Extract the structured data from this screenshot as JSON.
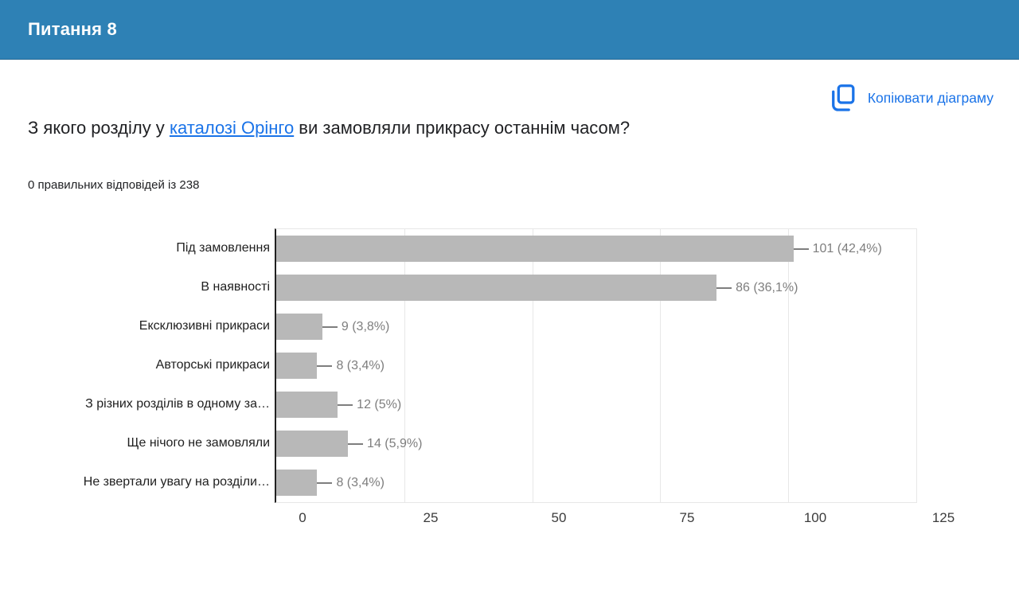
{
  "theme": {
    "header_bg": "#2e81b5",
    "accent_blue": "#1a73e8",
    "bar_color": "#b8b8b8",
    "value_label_color": "#7e7e7e",
    "grid_color": "#e7e7e7",
    "text_dark": "#202124"
  },
  "header": {
    "title": "Питання 8"
  },
  "toolbar": {
    "copy_chart_label": "Копіювати діаграму"
  },
  "question": {
    "text_before_link": "З якого розділу у ",
    "link_text": "каталозі Орінго",
    "text_after_link": " ви замовляли прикрасу останнім часом?"
  },
  "summary": {
    "text": "0 правильних відповідей із 238"
  },
  "chart_data": {
    "type": "bar",
    "orientation": "horizontal",
    "title": "",
    "xlabel": "",
    "ylabel": "",
    "categories": [
      "Під замовлення",
      "В наявності",
      "Ексклюзивні прикраси",
      "Авторські прикраси",
      "З різних розділів в одному за…",
      "Ще нічого не замовляли",
      "Не звертали увагу на розділи…"
    ],
    "values": [
      101,
      86,
      9,
      8,
      12,
      14,
      8
    ],
    "value_labels": [
      "101 (42,4%)",
      "86 (36,1%)",
      "9 (3,8%)",
      "8 (3,4%)",
      "12 (5%)",
      "14 (5,9%)",
      "8 (3,4%)"
    ],
    "total_responses": 238,
    "xlim": [
      0,
      125
    ],
    "xticks": [
      0,
      25,
      50,
      75,
      100,
      125
    ],
    "grid": true,
    "legend": "none"
  }
}
